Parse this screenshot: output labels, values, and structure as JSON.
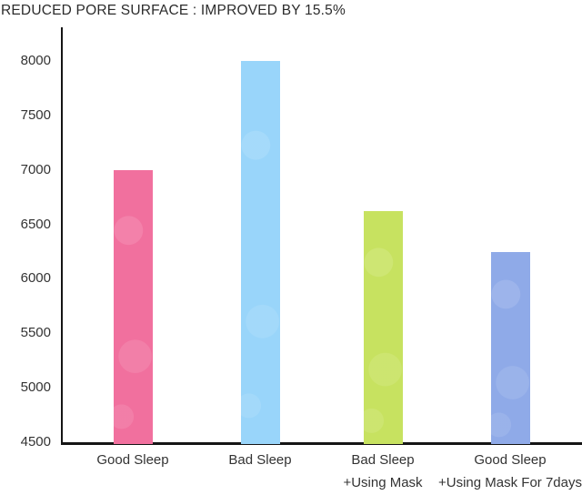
{
  "title": "REDUCED PORE SURFACE : IMPROVED BY 15.5%",
  "chart_data": {
    "type": "bar",
    "title": "REDUCED PORE SURFACE : IMPROVED BY 15.5%",
    "categories": [
      "Good Sleep",
      "Bad Sleep",
      "Bad Sleep\n+Using Mask",
      "Good Sleep\n+Using Mask For 7days"
    ],
    "values": [
      7000,
      8000,
      6620,
      6250
    ],
    "bar_colors": [
      "#F1709E",
      "#99D5FA",
      "#C7E260",
      "#8FAAE8"
    ],
    "ylim": [
      4500,
      8000
    ],
    "yticks": [
      4500,
      5000,
      5500,
      6000,
      6500,
      7000,
      7500,
      8000
    ],
    "ytick_step": 500,
    "xlabel": "",
    "ylabel": "",
    "legend": null,
    "grid": false,
    "axis_color": "#151515",
    "background": "#FFFFFF",
    "title_color": "#2B2B2B",
    "tick_label_color": "#333333"
  }
}
